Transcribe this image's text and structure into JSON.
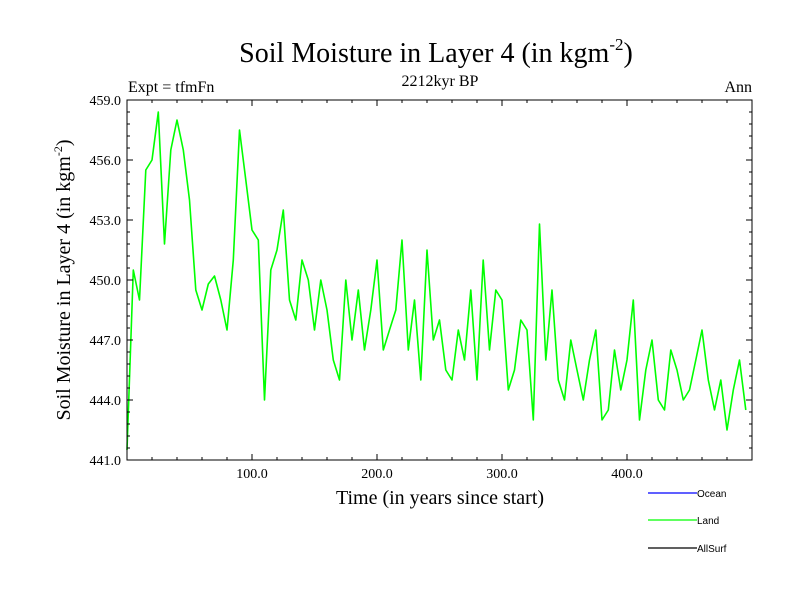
{
  "chart_data": {
    "type": "line",
    "title_main": "Soil Moisture in Layer 4 (in kgm",
    "title_sup": "-2",
    "title_close": ")",
    "subtitle_left": "Expt = tfmFn",
    "subtitle_center": "2212kyr BP",
    "subtitle_right": "Ann",
    "xlabel": "Time (in years since start)",
    "ylabel_main": "Soil Moisture in Layer 4 (in kgm",
    "ylabel_sup": "-2",
    "ylabel_close": ")",
    "xlim": [
      0,
      500
    ],
    "ylim": [
      441.0,
      459.0
    ],
    "x_ticks": [
      100,
      200,
      300,
      400
    ],
    "x_tick_labels": [
      "100.0",
      "200.0",
      "300.0",
      "400.0"
    ],
    "y_ticks": [
      441,
      444,
      447,
      450,
      453,
      456,
      459
    ],
    "y_tick_labels": [
      "441.0",
      "444.0",
      "447.0",
      "450.0",
      "453.0",
      "456.0",
      "459.0"
    ],
    "legend": [
      {
        "name": "Ocean",
        "color": "#0000ff"
      },
      {
        "name": "Land",
        "color": "#00ff00"
      },
      {
        "name": "AllSurf",
        "color": "#000000"
      }
    ],
    "series": [
      {
        "name": "Land",
        "color": "#00ff00",
        "x_start": 0,
        "x_step": 5,
        "values": [
          441.5,
          450.5,
          449.0,
          455.5,
          456.0,
          458.4,
          451.8,
          456.5,
          458.0,
          456.5,
          454.0,
          449.5,
          448.5,
          449.8,
          450.2,
          449.0,
          447.5,
          451.0,
          457.5,
          455.0,
          452.5,
          452.0,
          444.0,
          450.5,
          451.5,
          453.5,
          449.0,
          448.0,
          451.0,
          450.0,
          447.5,
          450.0,
          448.5,
          446.0,
          445.0,
          450.0,
          447.0,
          449.5,
          446.5,
          448.5,
          451.0,
          446.5,
          447.5,
          448.5,
          452.0,
          446.5,
          449.0,
          445.0,
          451.5,
          447.0,
          448.0,
          445.5,
          445.0,
          447.5,
          446.0,
          449.5,
          445.0,
          451.0,
          446.5,
          449.5,
          449.0,
          444.5,
          445.5,
          448.0,
          447.5,
          443.0,
          452.8,
          446.0,
          449.5,
          445.0,
          444.0,
          447.0,
          445.5,
          444.0,
          446.0,
          447.5,
          443.0,
          443.5,
          446.5,
          444.5,
          446.0,
          449.0,
          443.0,
          445.5,
          447.0,
          444.0,
          443.5,
          446.5,
          445.5,
          444.0,
          444.5,
          446.0,
          447.5,
          445.0,
          443.5,
          445.0,
          442.5,
          444.5,
          446.0,
          443.5
        ]
      }
    ]
  }
}
